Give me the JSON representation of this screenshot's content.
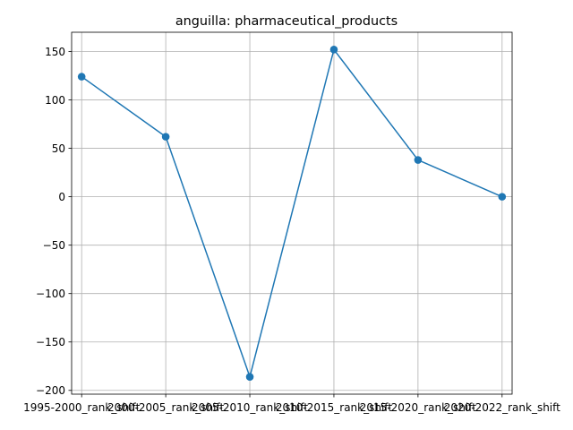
{
  "chart_data": {
    "type": "line",
    "title": "anguilla: pharmaceutical_products",
    "xlabel": "",
    "ylabel": "",
    "categories": [
      "1995-2000_rank_shift",
      "2000-2005_rank_shift",
      "2005-2010_rank_shift",
      "2010-2015_rank_shift",
      "2015-2020_rank_shift",
      "2020-2022_rank_shift"
    ],
    "series": [
      {
        "values": [
          124,
          62,
          -186,
          152,
          38,
          0
        ],
        "color": "#1f77b4",
        "marker": "circle"
      }
    ],
    "yticks": [
      -200,
      -150,
      -100,
      -50,
      0,
      50,
      100,
      150
    ],
    "ylim": [
      -203.9,
      169.9
    ],
    "grid": true,
    "legend": "none"
  }
}
